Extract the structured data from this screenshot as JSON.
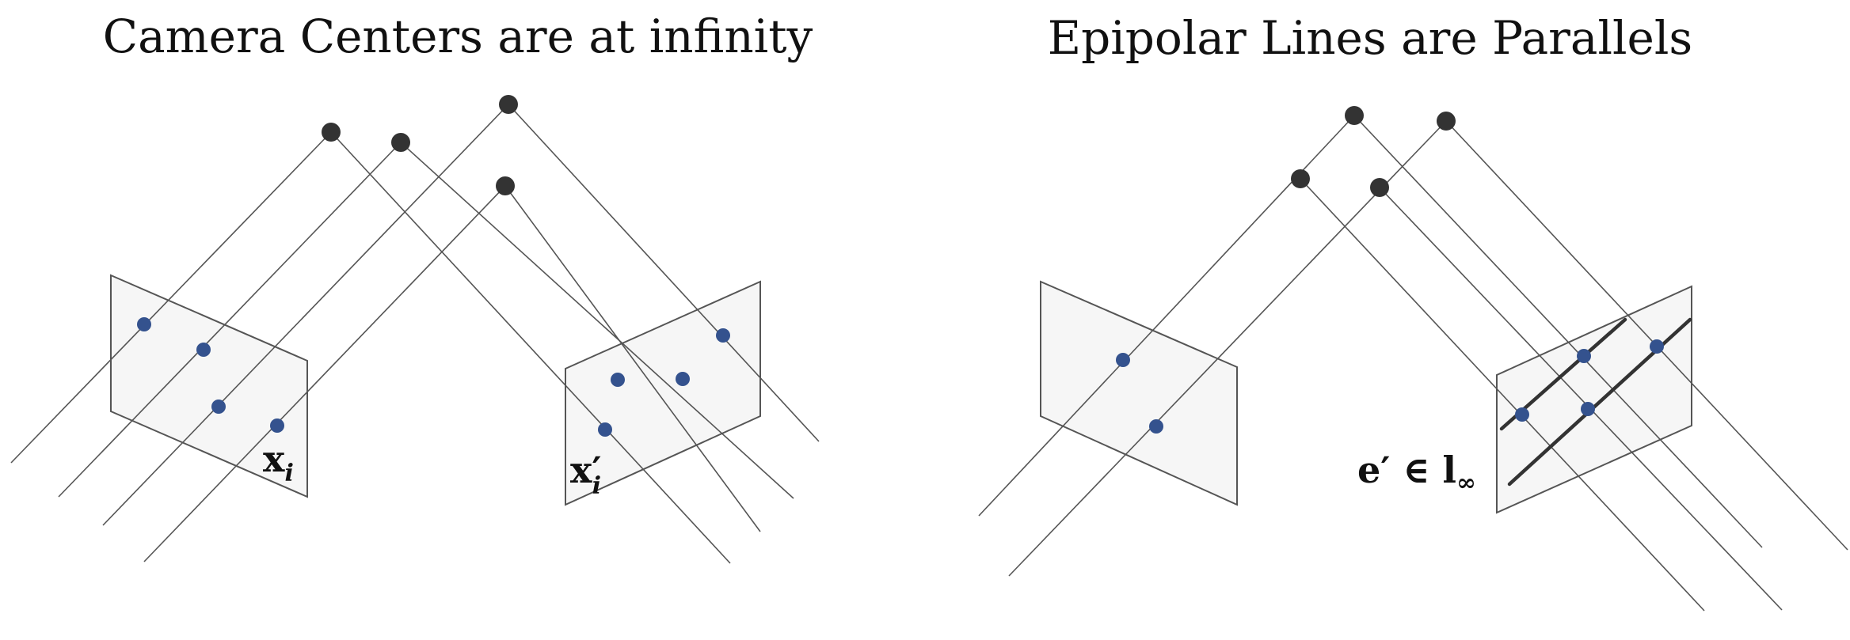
{
  "left_panel": {
    "title": "Camera Centers are at infinity",
    "label_x": "x",
    "label_x_sub": "i",
    "label_xprime": "x′",
    "label_xprime_sub": "i"
  },
  "right_panel": {
    "title": "Epipolar Lines are Parallels",
    "label_e": "e′ ∈ l",
    "label_e_sub": "∞"
  },
  "colors": {
    "image_point": "#34528e",
    "camera_center": "#333333",
    "plane_fill": "#f6f6f6"
  }
}
